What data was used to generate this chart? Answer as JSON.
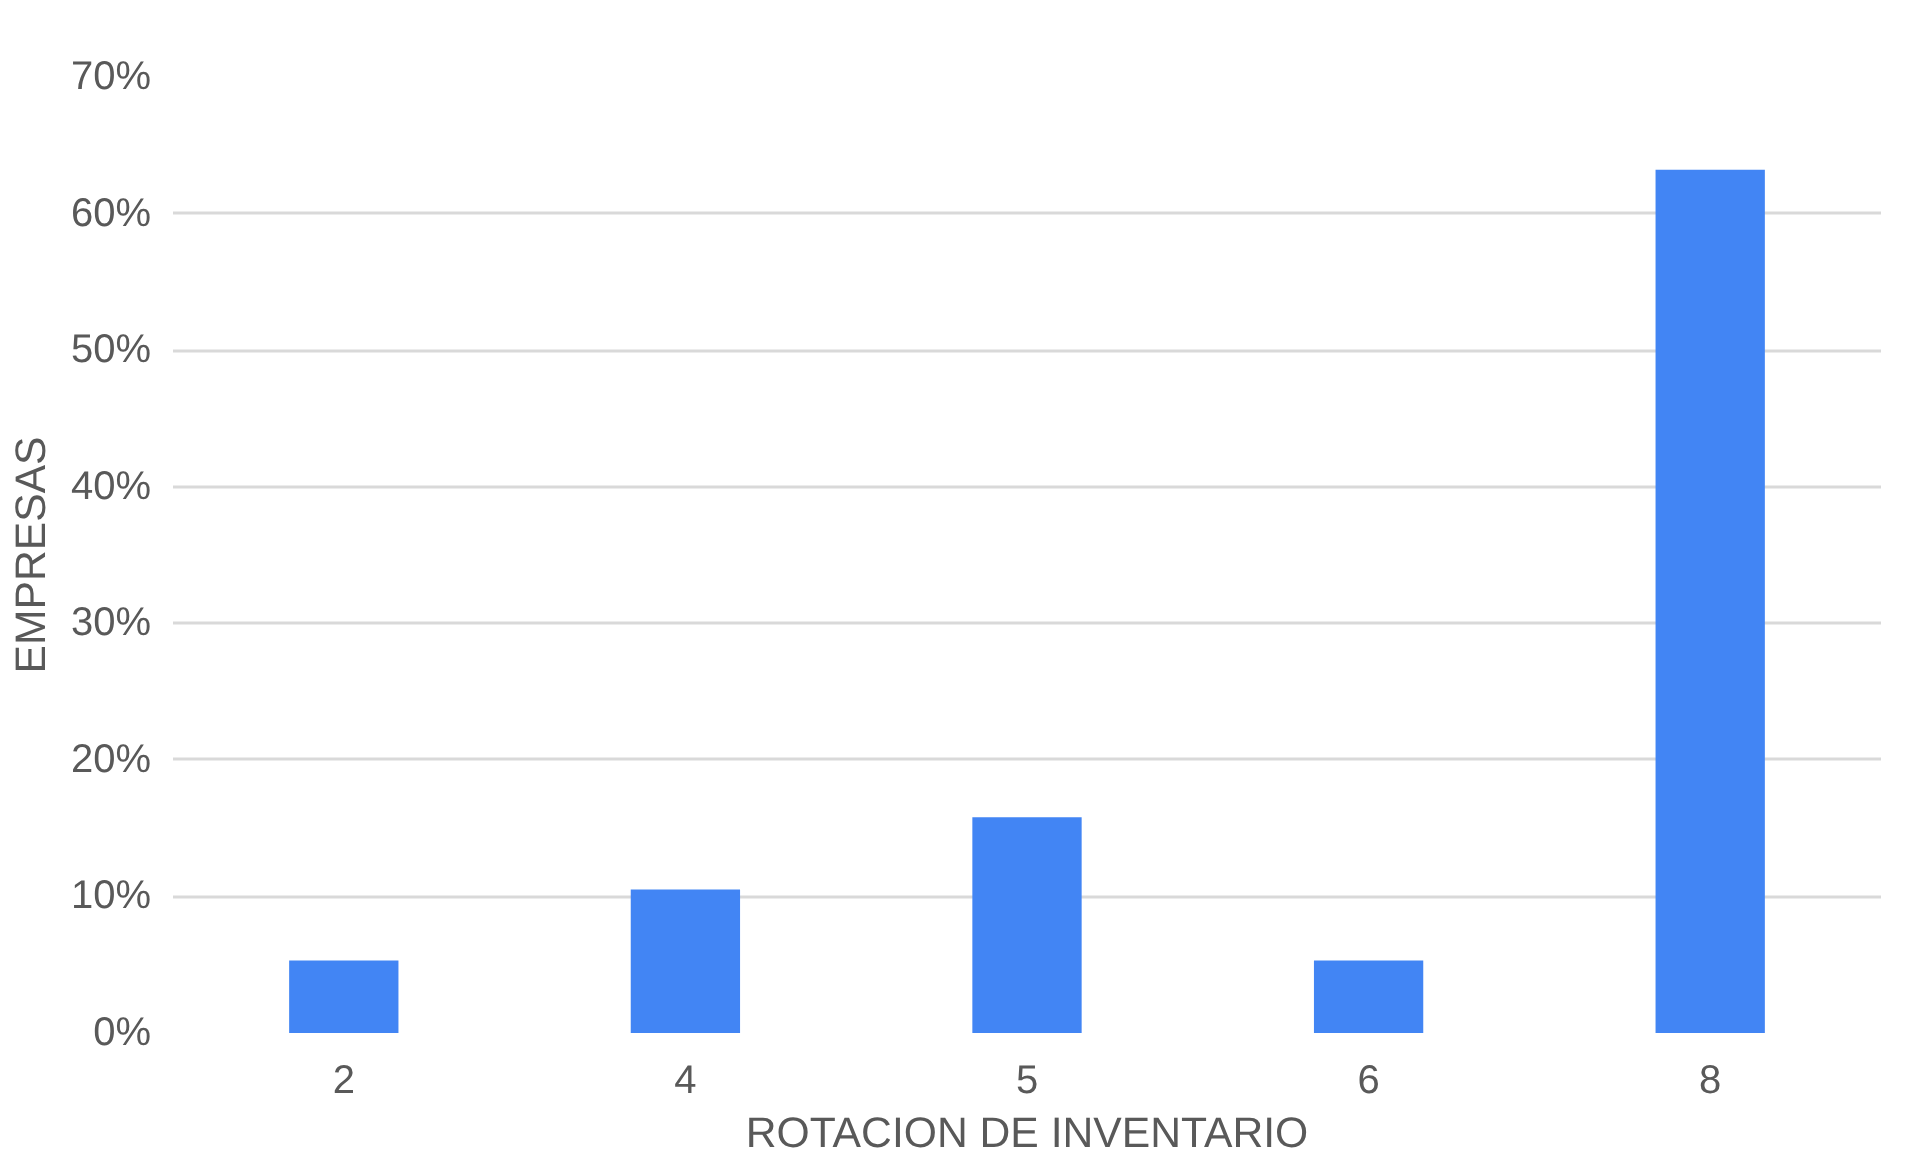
{
  "chart_data": {
    "type": "bar",
    "xlabel": "ROTACION DE INVENTARIO",
    "ylabel": "EMPRESAS",
    "categories": [
      "2",
      "4",
      "5",
      "6",
      "8"
    ],
    "values": [
      5.3,
      10.5,
      15.8,
      5.3,
      63.2
    ],
    "color": "#4285f4",
    "ylim": [
      0,
      70
    ],
    "yticks": [
      {
        "value": 0,
        "label": "0%"
      },
      {
        "value": 10,
        "label": "10%"
      },
      {
        "value": 20,
        "label": "20%"
      },
      {
        "value": 30,
        "label": "30%"
      },
      {
        "value": 40,
        "label": "40%"
      },
      {
        "value": 50,
        "label": "50%"
      },
      {
        "value": 60,
        "label": "60%"
      },
      {
        "value": 70,
        "label": "70%"
      }
    ],
    "grid": "y"
  }
}
